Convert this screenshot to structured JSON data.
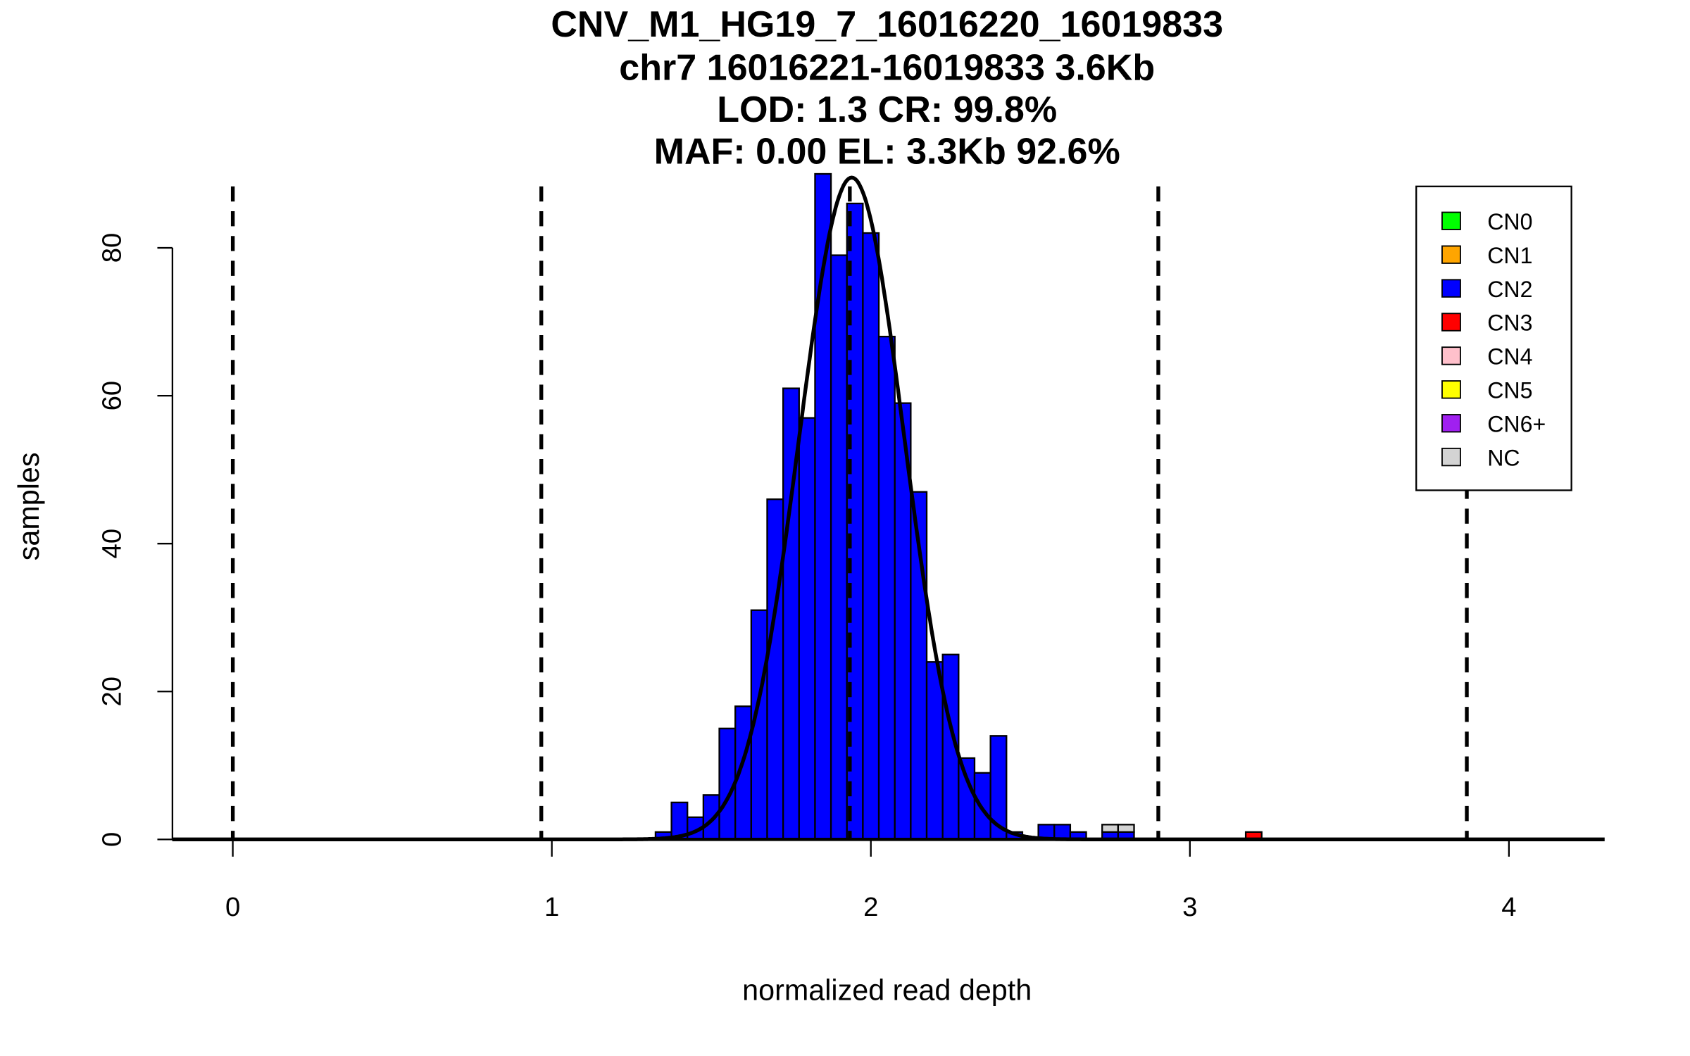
{
  "chart_data": {
    "type": "bar",
    "title_lines": [
      "CNV_M1_HG19_7_16016220_16019833",
      "chr7 16016221-16019833 3.6Kb",
      "LOD: 1.3 CR: 99.8%",
      "MAF: 0.00 EL: 3.3Kb 92.6%"
    ],
    "xlabel": "normalized read depth",
    "ylabel": "samples",
    "xlim": [
      -0.19,
      4.3
    ],
    "ylim": [
      0,
      90
    ],
    "xticks": [
      "0",
      "1",
      "2",
      "3",
      "4"
    ],
    "xtick_values": [
      0,
      1,
      2,
      3,
      4
    ],
    "yticks": [
      "0",
      "20",
      "40",
      "60",
      "80"
    ],
    "ytick_values": [
      0,
      20,
      40,
      60,
      80
    ],
    "bin_width": 0.05,
    "bins": [
      {
        "x0": 1.325,
        "CN2": 1
      },
      {
        "x0": 1.375,
        "CN2": 5
      },
      {
        "x0": 1.425,
        "CN2": 3
      },
      {
        "x0": 1.475,
        "CN2": 6
      },
      {
        "x0": 1.525,
        "CN2": 15
      },
      {
        "x0": 1.575,
        "CN2": 18
      },
      {
        "x0": 1.625,
        "CN2": 31
      },
      {
        "x0": 1.675,
        "CN2": 46
      },
      {
        "x0": 1.725,
        "CN2": 61
      },
      {
        "x0": 1.775,
        "CN2": 57
      },
      {
        "x0": 1.825,
        "CN2": 90
      },
      {
        "x0": 1.875,
        "CN2": 79
      },
      {
        "x0": 1.925,
        "CN2": 86
      },
      {
        "x0": 1.975,
        "CN2": 82
      },
      {
        "x0": 2.025,
        "CN2": 68
      },
      {
        "x0": 2.075,
        "CN2": 59
      },
      {
        "x0": 2.125,
        "CN2": 47
      },
      {
        "x0": 2.175,
        "CN2": 24
      },
      {
        "x0": 2.225,
        "CN2": 25
      },
      {
        "x0": 2.275,
        "CN2": 11
      },
      {
        "x0": 2.325,
        "CN2": 9
      },
      {
        "x0": 2.375,
        "CN2": 14
      },
      {
        "x0": 2.425,
        "CN2": 1
      },
      {
        "x0": 2.525,
        "CN2": 2
      },
      {
        "x0": 2.575,
        "CN2": 2
      },
      {
        "x0": 2.625,
        "CN2": 1
      },
      {
        "x0": 2.725,
        "CN2": 1,
        "NC": 1
      },
      {
        "x0": 2.775,
        "CN2": 1,
        "NC": 1
      },
      {
        "x0": 3.175,
        "CN3": 1
      }
    ],
    "fit_curve": {
      "type": "normal",
      "mean": 1.94,
      "sd": 0.165,
      "peak": 89.5
    },
    "cn_boundaries": [
      0,
      0.967,
      1.934,
      2.901,
      3.868
    ],
    "legend": {
      "placement": "top-right",
      "entries": [
        {
          "label": "CN0",
          "key": "CN0",
          "color": "#00ff00"
        },
        {
          "label": "CN1",
          "key": "CN1",
          "color": "#ffa500"
        },
        {
          "label": "CN2",
          "key": "CN2",
          "color": "#0000ff"
        },
        {
          "label": "CN3",
          "key": "CN3",
          "color": "#ff0000"
        },
        {
          "label": "CN4",
          "key": "CN4",
          "color": "#ffc0cb"
        },
        {
          "label": "CN5",
          "key": "CN5",
          "color": "#ffff00"
        },
        {
          "label": "CN6+",
          "key": "CN6",
          "color": "#a020f0"
        },
        {
          "label": "NC",
          "key": "NC",
          "color": "#d3d3d3"
        }
      ]
    }
  }
}
